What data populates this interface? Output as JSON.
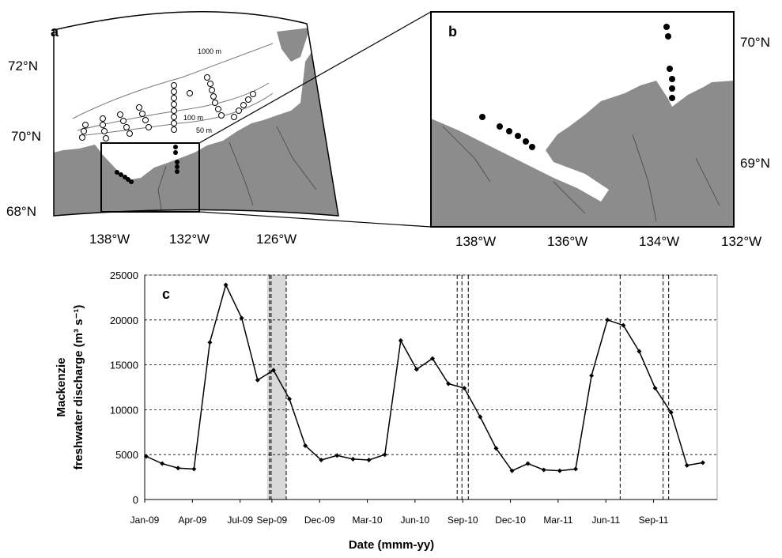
{
  "panel_a": {
    "letter": "a",
    "lat_labels": [
      "72°N",
      "70°N",
      "68°N"
    ],
    "lon_labels": [
      "138°W",
      "132°W",
      "126°W"
    ],
    "isobaths": [
      "1000 m",
      "100 m",
      "50 m"
    ]
  },
  "panel_b": {
    "letter": "b",
    "lat_labels": [
      "70°N",
      "69°N"
    ],
    "lon_labels": [
      "138°W",
      "136°W",
      "134°W",
      "132°W"
    ]
  },
  "colors": {
    "land": "#8c8c8c",
    "line": "#000000",
    "shade": "#d9d9d9",
    "grid": "#000000"
  },
  "chart_data": {
    "type": "line",
    "panel_letter": "c",
    "xlabel": "Date (mmm-yy)",
    "ylabel_line1": "Mackenzie",
    "ylabel_line2": "freshwater discharge (m³ s⁻¹)",
    "ylim": [
      0,
      25000
    ],
    "yticks": [
      "0",
      "5000",
      "10000",
      "15000",
      "20000",
      "25000"
    ],
    "xticks": [
      "Jan-09",
      "Apr-09",
      "Jul-09",
      "Sep-09",
      "Dec-09",
      "Mar-10",
      "Jun-10",
      "Sep-10",
      "Dec-10",
      "Mar-11",
      "Jun-11",
      "Sep-11"
    ],
    "grid": "horizontal dashed",
    "series": [
      {
        "x": [
          "Jan-09",
          "Feb-09",
          "Mar-09",
          "Apr-09",
          "May-09",
          "Jun-09",
          "Jul-09",
          "Aug-09",
          "Sep-09",
          "Oct-09",
          "Nov-09",
          "Dec-09",
          "Jan-10",
          "Feb-10",
          "Mar-10",
          "Apr-10",
          "May-10",
          "Jun-10",
          "Jul-10",
          "Aug-10",
          "Sep-10",
          "Oct-10",
          "Nov-10",
          "Dec-10",
          "Jan-11",
          "Feb-11",
          "Mar-11",
          "Apr-11",
          "May-11",
          "Jun-11",
          "Jul-11",
          "Aug-11",
          "Sep-11",
          "Oct-11",
          "Nov-11",
          "Dec-11"
        ],
        "values": [
          4800,
          4000,
          3500,
          3400,
          17500,
          23900,
          20200,
          13300,
          14400,
          11200,
          6000,
          4400,
          4900,
          4500,
          4400,
          5000,
          17700,
          14500,
          15700,
          12900,
          12400,
          9200,
          5700,
          3200,
          4000,
          3300,
          3200,
          3400,
          13800,
          20000,
          19400,
          16500,
          12400,
          9700,
          3800,
          4100
        ]
      }
    ],
    "shaded_period": [
      "Aug-09",
      "Sep-09"
    ],
    "vertical_dashed_lines": [
      "Aug-09",
      "Aug-09",
      "Sep-09",
      "Aug-10",
      "Aug-10",
      "Sep-10",
      "Jun-11",
      "Sep-11",
      "Sep-11"
    ]
  }
}
